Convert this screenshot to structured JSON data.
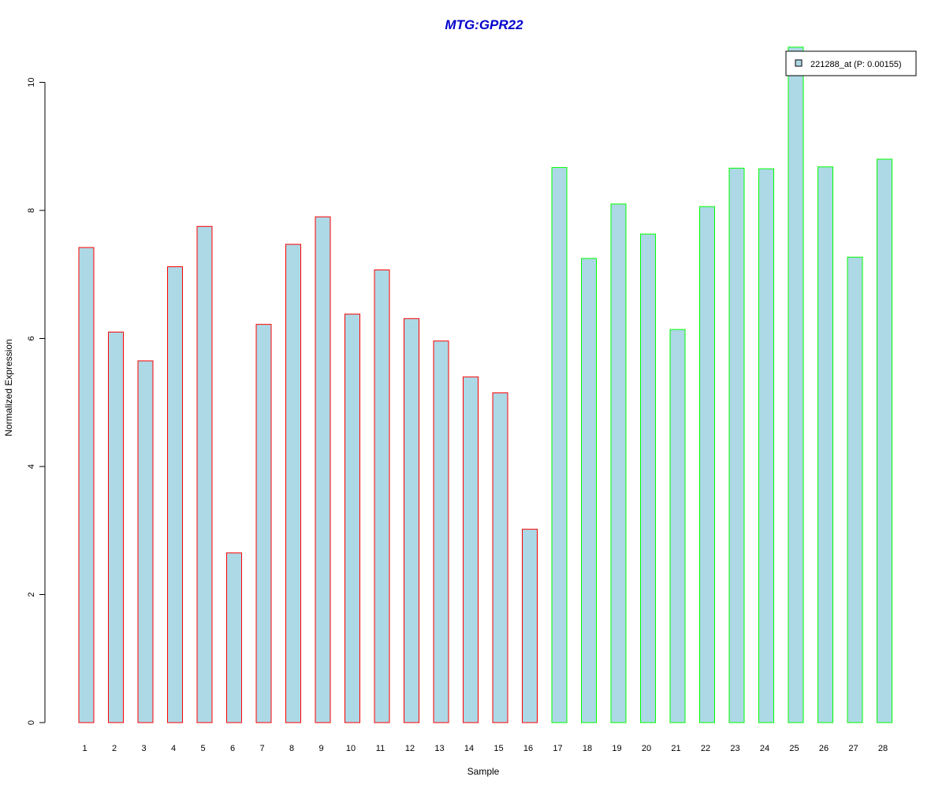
{
  "chart_data": {
    "type": "bar",
    "title": "MTG:GPR22",
    "xlabel": "Sample",
    "ylabel": "Normalized Expression",
    "categories": [
      "1",
      "2",
      "3",
      "4",
      "5",
      "6",
      "7",
      "8",
      "9",
      "10",
      "11",
      "12",
      "13",
      "14",
      "15",
      "16",
      "17",
      "18",
      "19",
      "20",
      "21",
      "22",
      "23",
      "24",
      "25",
      "26",
      "27",
      "28"
    ],
    "series": [
      {
        "name": "221288_at (P: 0.00155)",
        "values": [
          7.42,
          6.1,
          5.65,
          7.12,
          7.75,
          2.65,
          6.22,
          7.47,
          7.9,
          6.38,
          7.07,
          6.31,
          5.96,
          5.4,
          5.15,
          3.02,
          8.67,
          7.25,
          8.1,
          7.63,
          6.14,
          8.06,
          8.66,
          8.65,
          10.55,
          8.68,
          7.27,
          8.8
        ]
      }
    ],
    "group_border_colors": [
      "#ff0000",
      "#ff0000",
      "#ff0000",
      "#ff0000",
      "#ff0000",
      "#ff0000",
      "#ff0000",
      "#ff0000",
      "#ff0000",
      "#ff0000",
      "#ff0000",
      "#ff0000",
      "#ff0000",
      "#ff0000",
      "#ff0000",
      "#ff0000",
      "#00ff00",
      "#00ff00",
      "#00ff00",
      "#00ff00",
      "#00ff00",
      "#00ff00",
      "#00ff00",
      "#00ff00",
      "#00ff00",
      "#00ff00",
      "#00ff00",
      "#00ff00"
    ],
    "y_ticks": [
      "0",
      "2",
      "4",
      "6",
      "8",
      "10"
    ],
    "ylim": [
      0,
      10.6
    ],
    "grid": false,
    "legend_position": "top-right",
    "colors": {
      "bar_fill": "#add8e6",
      "title": "#0000cc",
      "axis": "#000000"
    }
  }
}
